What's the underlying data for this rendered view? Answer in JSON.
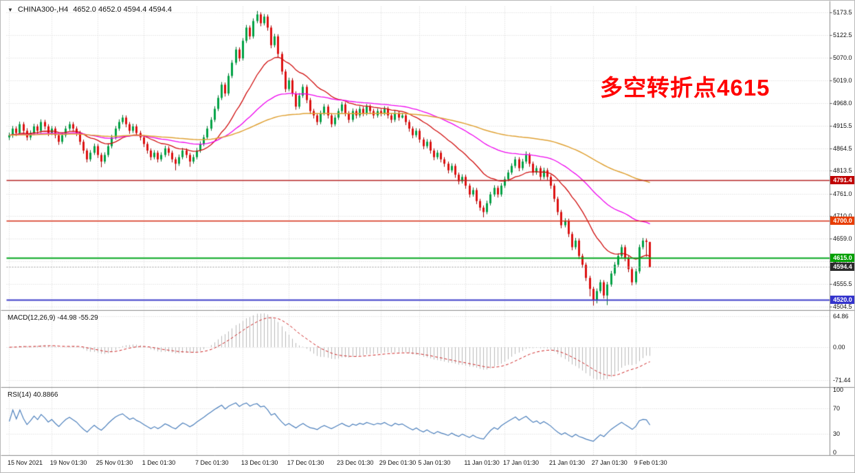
{
  "header": {
    "collapse_icon": "▼",
    "title": "CHINA300-,H4",
    "ohlc": "4652.0 4652.0 4594.4 4594.4"
  },
  "annotation": {
    "text": "多空转折点4615",
    "color": "#ff0000"
  },
  "indicators": {
    "macd_label": "MACD(12,26,9) -44.98 -55.29",
    "rsi_label": "RSI(14) 40.8866"
  },
  "chart_data": {
    "type": "candlestick",
    "title": "CHINA300-,H4",
    "timeframe": "H4",
    "grid": true,
    "up_color": "#00a244",
    "down_color": "#dd1010",
    "up_edge": "#006e2e",
    "down_edge": "#9c0000",
    "price_axis": {
      "min": 4496,
      "max": 5188,
      "ticks": [
        "5173.5",
        "5122.5",
        "5070.0",
        "5019.0",
        "4968.0",
        "4915.5",
        "4864.5",
        "4813.5",
        "4761.0",
        "4710.0",
        "4659.0",
        "4606.5",
        "4555.5",
        "4504.5"
      ]
    },
    "time_ticks": [
      [
        "15 Nov 2021",
        0
      ],
      [
        "19 Nov 01:30",
        12
      ],
      [
        "25 Nov 01:30",
        25
      ],
      [
        "1 Dec 01:30",
        38
      ],
      [
        "7 Dec 01:30",
        53
      ],
      [
        "13 Dec 01:30",
        66
      ],
      [
        "17 Dec 01:30",
        79
      ],
      [
        "23 Dec 01:30",
        93
      ],
      [
        "29 Dec 01:30",
        105
      ],
      [
        "5 Jan 01:30",
        116
      ],
      [
        "11 Jan 01:30",
        129
      ],
      [
        "17 Jan 01:30",
        140
      ],
      [
        "21 Jan 01:30",
        153
      ],
      [
        "27 Jan 01:30",
        165
      ],
      [
        "9 Feb 01:30",
        177
      ]
    ],
    "levels": [
      {
        "value": 4791.4,
        "label": "4791.4",
        "color": "#b42020",
        "badge": "#c00000",
        "width": 1.5
      },
      {
        "value": 4700.0,
        "label": "4700.0",
        "color": "#d42810",
        "badge": "#e83c00",
        "width": 1.5
      },
      {
        "value": 4615.0,
        "label": "4615.0",
        "color": "#00a61d",
        "badge": "#00a000",
        "width": 2
      },
      {
        "value": 4520.0,
        "label": "4520.0",
        "color": "#3c3cc8",
        "badge": "#3333cc",
        "width": 2
      }
    ],
    "current_price": {
      "value": 4594.4,
      "label": "4594.4",
      "line_color": "#9a9a9a",
      "badge": "#2a2a2a"
    },
    "moving_averages": [
      {
        "name": "ma-fast",
        "period": 20,
        "color": "#cf0a0a",
        "width": 1.3
      },
      {
        "name": "ma-mid",
        "period": 55,
        "color": "#ee00ee",
        "width": 1.3
      },
      {
        "name": "ma-slow",
        "period": 130,
        "color": "#dfa032",
        "width": 1.5
      }
    ],
    "macd": {
      "fast": 12,
      "slow": 26,
      "signal": 9,
      "value": -44.98,
      "signal_value": -55.29,
      "ticks": [
        "64.86",
        "0.00",
        "-71.44"
      ],
      "range": [
        -80,
        70
      ],
      "hist_color": "#b8b8b8",
      "signal_color": "#cc2222"
    },
    "rsi": {
      "period": 14,
      "value": 40.8866,
      "ticks": [
        "100",
        "70",
        "30",
        "0"
      ],
      "guide_levels": [
        70,
        30
      ],
      "range": [
        0,
        100
      ],
      "color": "#4a7ebb"
    },
    "candles": [
      [
        4890,
        4901,
        4884,
        4895
      ],
      [
        4895,
        4916,
        4889,
        4910
      ],
      [
        4910,
        4915,
        4893,
        4900
      ],
      [
        4900,
        4926,
        4895,
        4920
      ],
      [
        4920,
        4925,
        4898,
        4905
      ],
      [
        4905,
        4911,
        4883,
        4890
      ],
      [
        4890,
        4906,
        4884,
        4900
      ],
      [
        4900,
        4921,
        4895,
        4915
      ],
      [
        4915,
        4920,
        4898,
        4905
      ],
      [
        4905,
        4931,
        4900,
        4925
      ],
      [
        4925,
        4930,
        4908,
        4915
      ],
      [
        4915,
        4920,
        4893,
        4900
      ],
      [
        4900,
        4916,
        4895,
        4910
      ],
      [
        4910,
        4915,
        4888,
        4895
      ],
      [
        4895,
        4900,
        4873,
        4880
      ],
      [
        4880,
        4901,
        4875,
        4895
      ],
      [
        4895,
        4916,
        4890,
        4910
      ],
      [
        4910,
        4926,
        4905,
        4920
      ],
      [
        4920,
        4925,
        4903,
        4910
      ],
      [
        4910,
        4915,
        4893,
        4900
      ],
      [
        4900,
        4905,
        4873,
        4880
      ],
      [
        4880,
        4885,
        4853,
        4860
      ],
      [
        4860,
        4865,
        4833,
        4840
      ],
      [
        4840,
        4861,
        4835,
        4855
      ],
      [
        4855,
        4876,
        4850,
        4870
      ],
      [
        4870,
        4875,
        4843,
        4850
      ],
      [
        4850,
        4855,
        4822,
        4835
      ],
      [
        4835,
        4856,
        4830,
        4850
      ],
      [
        4850,
        4876,
        4845,
        4870
      ],
      [
        4870,
        4896,
        4865,
        4890
      ],
      [
        4890,
        4916,
        4885,
        4910
      ],
      [
        4910,
        4931,
        4905,
        4925
      ],
      [
        4925,
        4941,
        4920,
        4935
      ],
      [
        4935,
        4940,
        4913,
        4920
      ],
      [
        4920,
        4925,
        4898,
        4905
      ],
      [
        4905,
        4921,
        4900,
        4915
      ],
      [
        4915,
        4920,
        4893,
        4900
      ],
      [
        4900,
        4905,
        4883,
        4890
      ],
      [
        4890,
        4895,
        4868,
        4875
      ],
      [
        4875,
        4880,
        4853,
        4860
      ],
      [
        4860,
        4865,
        4838,
        4845
      ],
      [
        4845,
        4861,
        4840,
        4855
      ],
      [
        4855,
        4860,
        4833,
        4840
      ],
      [
        4840,
        4856,
        4835,
        4850
      ],
      [
        4850,
        4871,
        4845,
        4865
      ],
      [
        4865,
        4870,
        4848,
        4855
      ],
      [
        4855,
        4860,
        4833,
        4840
      ],
      [
        4840,
        4845,
        4815,
        4830
      ],
      [
        4830,
        4851,
        4825,
        4845
      ],
      [
        4845,
        4866,
        4840,
        4860
      ],
      [
        4860,
        4865,
        4843,
        4850
      ],
      [
        4850,
        4855,
        4823,
        4835
      ],
      [
        4835,
        4851,
        4830,
        4845
      ],
      [
        4845,
        4866,
        4840,
        4860
      ],
      [
        4860,
        4881,
        4855,
        4875
      ],
      [
        4875,
        4896,
        4870,
        4890
      ],
      [
        4890,
        4916,
        4885,
        4910
      ],
      [
        4910,
        4936,
        4905,
        4930
      ],
      [
        4930,
        4961,
        4925,
        4955
      ],
      [
        4955,
        4986,
        4950,
        4980
      ],
      [
        4980,
        5016,
        4975,
        5010
      ],
      [
        5010,
        5015,
        4983,
        4990
      ],
      [
        4990,
        5036,
        4985,
        5030
      ],
      [
        5030,
        5066,
        5025,
        5060
      ],
      [
        5060,
        5096,
        5055,
        5090
      ],
      [
        5090,
        5095,
        5063,
        5070
      ],
      [
        5070,
        5116,
        5065,
        5110
      ],
      [
        5110,
        5146,
        5105,
        5140
      ],
      [
        5140,
        5145,
        5113,
        5120
      ],
      [
        5120,
        5161,
        5115,
        5155
      ],
      [
        5155,
        5178,
        5150,
        5170
      ],
      [
        5170,
        5175,
        5143,
        5150
      ],
      [
        5150,
        5171,
        5145,
        5165
      ],
      [
        5165,
        5170,
        5133,
        5140
      ],
      [
        5140,
        5145,
        5093,
        5100
      ],
      [
        5100,
        5126,
        5095,
        5120
      ],
      [
        5120,
        5125,
        5073,
        5080
      ],
      [
        5080,
        5085,
        5033,
        5040
      ],
      [
        5040,
        5045,
        4993,
        5000
      ],
      [
        5000,
        5026,
        4995,
        5020
      ],
      [
        5020,
        5025,
        4983,
        4990
      ],
      [
        4990,
        4995,
        4953,
        4960
      ],
      [
        4960,
        4991,
        4955,
        4985
      ],
      [
        4985,
        5011,
        4980,
        5005
      ],
      [
        5005,
        5010,
        4968,
        4975
      ],
      [
        4975,
        4980,
        4943,
        4950
      ],
      [
        4950,
        4955,
        4933,
        4940
      ],
      [
        4940,
        4945,
        4918,
        4925
      ],
      [
        4925,
        4951,
        4920,
        4945
      ],
      [
        4945,
        4966,
        4940,
        4960
      ],
      [
        4960,
        4965,
        4933,
        4940
      ],
      [
        4940,
        4945,
        4913,
        4920
      ],
      [
        4920,
        4941,
        4915,
        4935
      ],
      [
        4935,
        4956,
        4930,
        4950
      ],
      [
        4950,
        4971,
        4945,
        4965
      ],
      [
        4965,
        4970,
        4938,
        4945
      ],
      [
        4945,
        4950,
        4923,
        4930
      ],
      [
        4930,
        4956,
        4925,
        4950
      ],
      [
        4950,
        4955,
        4933,
        4940
      ],
      [
        4940,
        4961,
        4935,
        4955
      ],
      [
        4955,
        4960,
        4938,
        4945
      ],
      [
        4945,
        4966,
        4940,
        4960
      ],
      [
        4960,
        4965,
        4943,
        4950
      ],
      [
        4950,
        4955,
        4933,
        4940
      ],
      [
        4940,
        4956,
        4935,
        4950
      ],
      [
        4950,
        4955,
        4938,
        4945
      ],
      [
        4945,
        4961,
        4940,
        4955
      ],
      [
        4955,
        4960,
        4933,
        4940
      ],
      [
        4940,
        4945,
        4923,
        4930
      ],
      [
        4930,
        4951,
        4925,
        4945
      ],
      [
        4945,
        4950,
        4928,
        4935
      ],
      [
        4935,
        4946,
        4933,
        4940
      ],
      [
        4940,
        4945,
        4918,
        4925
      ],
      [
        4925,
        4930,
        4903,
        4910
      ],
      [
        4910,
        4915,
        4888,
        4895
      ],
      [
        4895,
        4911,
        4890,
        4905
      ],
      [
        4905,
        4910,
        4878,
        4885
      ],
      [
        4885,
        4890,
        4863,
        4870
      ],
      [
        4870,
        4886,
        4865,
        4880
      ],
      [
        4880,
        4885,
        4853,
        4860
      ],
      [
        4860,
        4865,
        4838,
        4845
      ],
      [
        4845,
        4861,
        4840,
        4855
      ],
      [
        4855,
        4860,
        4833,
        4840
      ],
      [
        4840,
        4845,
        4823,
        4830
      ],
      [
        4830,
        4835,
        4808,
        4815
      ],
      [
        4815,
        4831,
        4810,
        4825
      ],
      [
        4825,
        4830,
        4798,
        4805
      ],
      [
        4805,
        4810,
        4783,
        4790
      ],
      [
        4790,
        4806,
        4785,
        4800
      ],
      [
        4800,
        4805,
        4773,
        4780
      ],
      [
        4780,
        4785,
        4753,
        4760
      ],
      [
        4760,
        4776,
        4755,
        4770
      ],
      [
        4770,
        4775,
        4738,
        4745
      ],
      [
        4745,
        4750,
        4723,
        4730
      ],
      [
        4730,
        4735,
        4708,
        4720
      ],
      [
        4720,
        4746,
        4715,
        4740
      ],
      [
        4740,
        4766,
        4735,
        4760
      ],
      [
        4760,
        4781,
        4755,
        4775
      ],
      [
        4775,
        4780,
        4753,
        4760
      ],
      [
        4760,
        4786,
        4755,
        4780
      ],
      [
        4780,
        4801,
        4775,
        4795
      ],
      [
        4795,
        4816,
        4790,
        4810
      ],
      [
        4810,
        4831,
        4805,
        4825
      ],
      [
        4825,
        4846,
        4820,
        4840
      ],
      [
        4840,
        4845,
        4813,
        4820
      ],
      [
        4820,
        4841,
        4815,
        4835
      ],
      [
        4835,
        4858,
        4830,
        4850
      ],
      [
        4850,
        4855,
        4823,
        4830
      ],
      [
        4830,
        4835,
        4803,
        4810
      ],
      [
        4810,
        4826,
        4805,
        4820
      ],
      [
        4820,
        4825,
        4793,
        4800
      ],
      [
        4800,
        4821,
        4795,
        4815
      ],
      [
        4815,
        4820,
        4793,
        4800
      ],
      [
        4800,
        4805,
        4773,
        4780
      ],
      [
        4780,
        4785,
        4743,
        4750
      ],
      [
        4750,
        4755,
        4713,
        4720
      ],
      [
        4720,
        4725,
        4683,
        4690
      ],
      [
        4690,
        4706,
        4685,
        4700
      ],
      [
        4700,
        4705,
        4663,
        4670
      ],
      [
        4670,
        4675,
        4633,
        4640
      ],
      [
        4640,
        4661,
        4635,
        4655
      ],
      [
        4655,
        4660,
        4613,
        4620
      ],
      [
        4620,
        4625,
        4593,
        4600
      ],
      [
        4600,
        4605,
        4563,
        4570
      ],
      [
        4570,
        4575,
        4528,
        4545
      ],
      [
        4545,
        4550,
        4507,
        4520
      ],
      [
        4520,
        4546,
        4512,
        4540
      ],
      [
        4540,
        4566,
        4535,
        4560
      ],
      [
        4560,
        4565,
        4523,
        4530
      ],
      [
        4530,
        4561,
        4508,
        4555
      ],
      [
        4555,
        4586,
        4550,
        4580
      ],
      [
        4580,
        4606,
        4575,
        4600
      ],
      [
        4600,
        4626,
        4595,
        4620
      ],
      [
        4620,
        4646,
        4615,
        4640
      ],
      [
        4640,
        4645,
        4608,
        4615
      ],
      [
        4615,
        4620,
        4583,
        4590
      ],
      [
        4590,
        4595,
        4553,
        4560
      ],
      [
        4560,
        4591,
        4555,
        4585
      ],
      [
        4585,
        4646,
        4580,
        4640
      ],
      [
        4640,
        4661,
        4635,
        4655
      ],
      [
        4655,
        4660,
        4618,
        4652
      ],
      [
        4652,
        4652,
        4594.4,
        4594.4
      ]
    ]
  }
}
